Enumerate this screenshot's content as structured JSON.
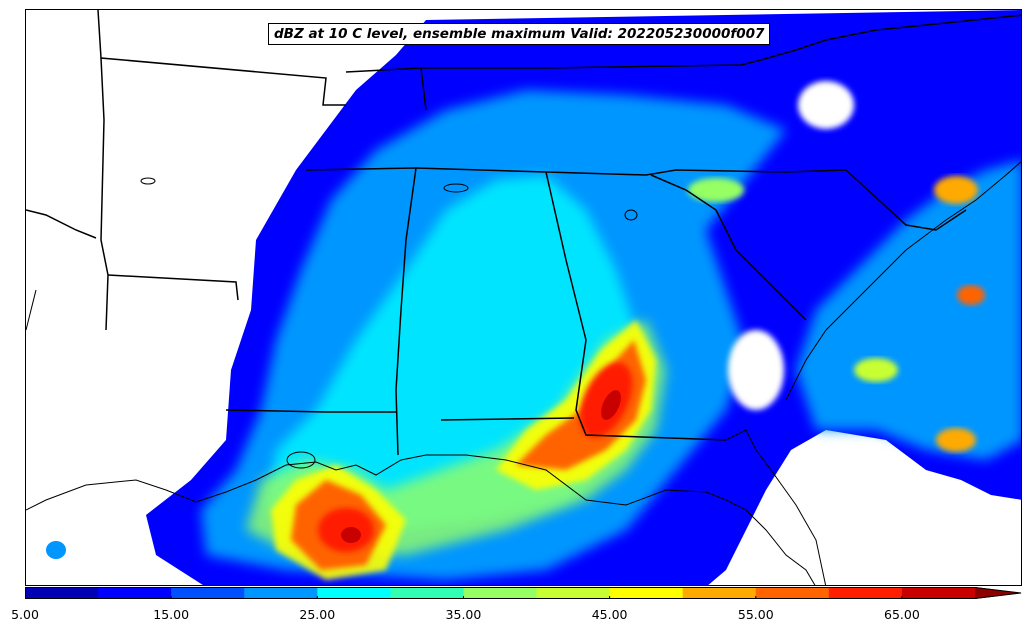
{
  "title": "dBZ at 10 C level, ensemble maximum Valid: 202205230000f007",
  "colorbar": {
    "min": 5,
    "max": 70,
    "extend": "max",
    "bins": [
      {
        "from": 5,
        "to": 10,
        "color": "#0000b4"
      },
      {
        "from": 10,
        "to": 15,
        "color": "#0000ff"
      },
      {
        "from": 15,
        "to": 20,
        "color": "#0050ff"
      },
      {
        "from": 20,
        "to": 25,
        "color": "#0096ff"
      },
      {
        "from": 25,
        "to": 30,
        "color": "#00ffff"
      },
      {
        "from": 30,
        "to": 35,
        "color": "#32ffb4"
      },
      {
        "from": 35,
        "to": 40,
        "color": "#96ff64"
      },
      {
        "from": 40,
        "to": 45,
        "color": "#c8ff32"
      },
      {
        "from": 45,
        "to": 50,
        "color": "#ffff00"
      },
      {
        "from": 50,
        "to": 55,
        "color": "#ffaa00"
      },
      {
        "from": 55,
        "to": 60,
        "color": "#ff6400"
      },
      {
        "from": 60,
        "to": 65,
        "color": "#ff1e00"
      },
      {
        "from": 65,
        "to": 70,
        "color": "#c80000"
      }
    ],
    "extend_color": "#8c0000",
    "ticks": [
      5,
      15,
      25,
      35,
      45,
      55,
      65
    ],
    "tick_labels": [
      "5.00",
      "15.00",
      "25.00",
      "35.00",
      "45.00",
      "55.00",
      "65.00"
    ]
  }
}
